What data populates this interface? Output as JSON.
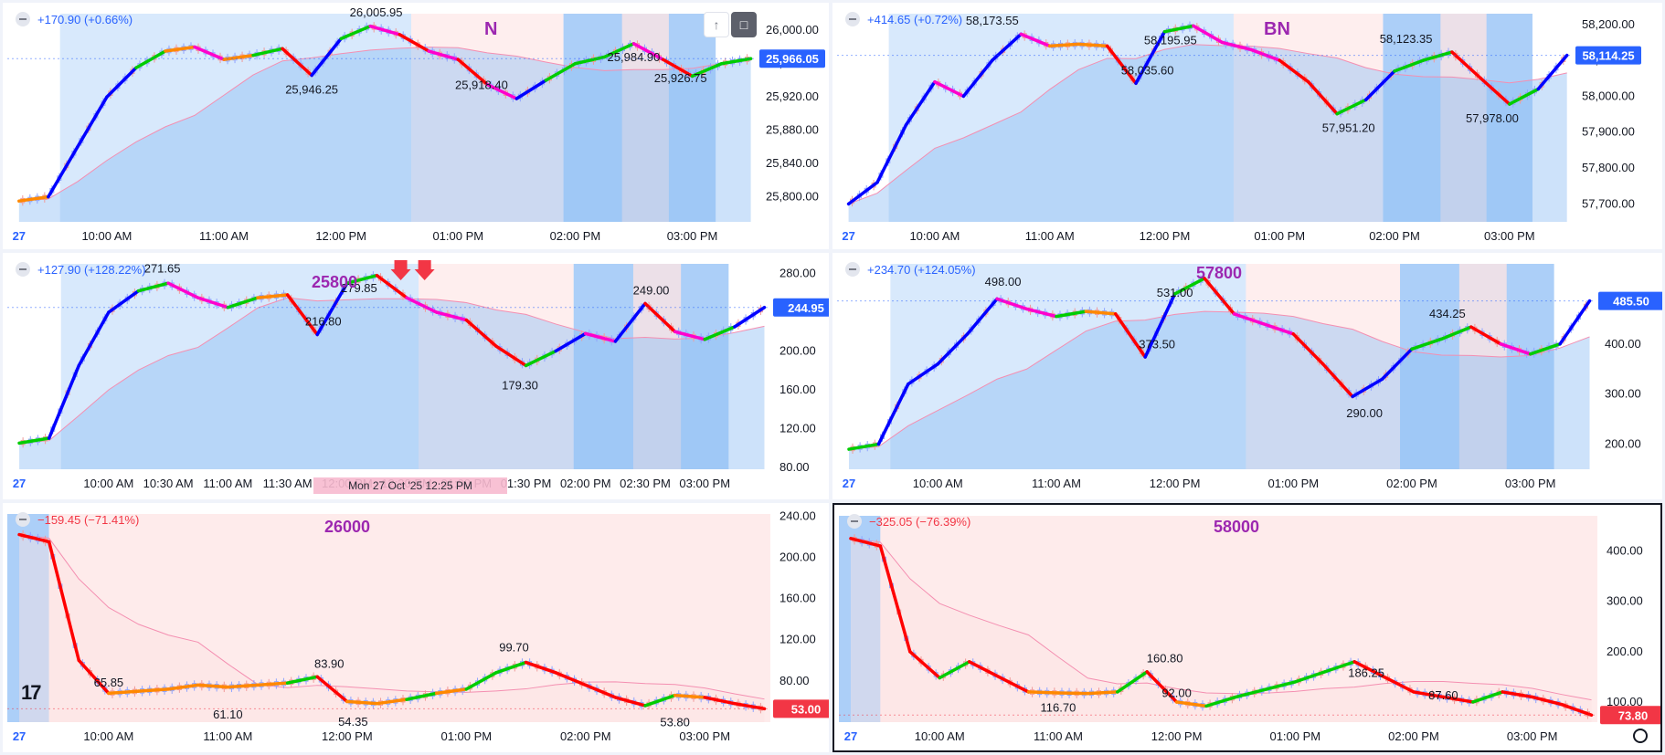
{
  "colors": {
    "up": "#0000ff",
    "down": "#ff0000",
    "rally": "#00cc00",
    "sideways": "#ff8800",
    "pullback": "#ff00cc",
    "blue_zone": "#90bff5",
    "pink_zone": "#fde3e3",
    "last_price_tag": "#2962ff",
    "last_price_tag_down": "#f23645",
    "gain_text": "#2962ff",
    "loss_text": "#f23645",
    "symbol_label": "#9c27b0"
  },
  "icons": [
    "collapse-icon",
    "arrow-up-icon",
    "fullscreen-icon",
    "tradingview-logo",
    "settings-icon",
    "sell-arrow-icon"
  ],
  "hover_tooltip": "Mon 27 Oct '25   12:25 PM",
  "charts": [
    {
      "change": "+170.90 (+0.66%)",
      "symbol": "N",
      "last_price": "25,966.05",
      "annotations": [
        {
          "text": "26,005.95",
          "t": 12.3,
          "v": 26005.95
        },
        {
          "text": "25,946.25",
          "t": 11.75,
          "v": 25946.25
        },
        {
          "text": "25,918.40",
          "t": 13.2,
          "v": 25918.4
        },
        {
          "text": "25,984.90",
          "t": 14.5,
          "v": 25984.9
        },
        {
          "text": "25,926.75",
          "t": 14.9,
          "v": 25926.75
        }
      ]
    },
    {
      "change": "+414.65 (+0.72%)",
      "symbol": "BN",
      "last_price": "58,114.25",
      "annotations": [
        {
          "text": "58,173.55",
          "t": 10.5,
          "v": 58173.55
        },
        {
          "text": "58,195.95",
          "t": 12.05,
          "v": 58195.95
        },
        {
          "text": "58,035.60",
          "t": 11.85,
          "v": 58035.6
        },
        {
          "text": "57,951.20",
          "t": 13.6,
          "v": 57951.2
        },
        {
          "text": "58,123.35",
          "t": 14.1,
          "v": 58123.35
        },
        {
          "text": "57,978.00",
          "t": 14.85,
          "v": 57978
        }
      ]
    },
    {
      "change": "+127.90 (+128.22%)",
      "symbol": "25800",
      "last_price": "244.95",
      "annotations": [
        {
          "text": "271.65",
          "t": 10.45,
          "v": 271.65
        },
        {
          "text": "279.85",
          "t": 12.1,
          "v": 279.85
        },
        {
          "text": "216.80",
          "t": 11.8,
          "v": 216.8
        },
        {
          "text": "179.30",
          "t": 13.45,
          "v": 179.3
        },
        {
          "text": "249.00",
          "t": 14.55,
          "v": 249
        }
      ]
    },
    {
      "change": "+234.70 (+124.05%)",
      "symbol": "57800",
      "last_price": "485.50",
      "annotations": [
        {
          "text": "498.00",
          "t": 10.55,
          "v": 498
        },
        {
          "text": "531.00",
          "t": 12.0,
          "v": 531
        },
        {
          "text": "373.50",
          "t": 11.85,
          "v": 373.5
        },
        {
          "text": "290.00",
          "t": 13.6,
          "v": 290
        },
        {
          "text": "434.25",
          "t": 14.3,
          "v": 434.25
        }
      ]
    },
    {
      "change": "−159.45 (−71.41%)",
      "symbol": "26000",
      "last_price": "53.00",
      "annotations": [
        {
          "text": "65.85",
          "t": 10.0,
          "v": 65.85
        },
        {
          "text": "61.10",
          "t": 11.0,
          "v": 61.1
        },
        {
          "text": "83.90",
          "t": 11.85,
          "v": 83.9
        },
        {
          "text": "54.35",
          "t": 12.05,
          "v": 54.35
        },
        {
          "text": "99.70",
          "t": 13.4,
          "v": 99.7
        },
        {
          "text": "53.80",
          "t": 14.75,
          "v": 53.8
        }
      ]
    },
    {
      "change": "−325.05 (−76.39%)",
      "symbol": "58000",
      "last_price": "73.80",
      "annotations": [
        {
          "text": "160.80",
          "t": 11.9,
          "v": 160.8
        },
        {
          "text": "116.70",
          "t": 11.0,
          "v": 116.7
        },
        {
          "text": "92.00",
          "t": 12.0,
          "v": 92
        },
        {
          "text": "186.25",
          "t": 13.6,
          "v": 186.25
        },
        {
          "text": "87.60",
          "t": 14.25,
          "v": 87.6
        }
      ]
    }
  ],
  "chart_data": [
    {
      "type": "line",
      "title": "N",
      "x_ticks": [
        "27",
        "10:00 AM",
        "11:00 AM",
        "12:00 PM",
        "01:00 PM",
        "02:00 PM",
        "03:00 PM"
      ],
      "y_ticks": [
        "26,000.00",
        "25,960.00",
        "25,920.00",
        "25,880.00",
        "25,840.00",
        "25,800.00"
      ],
      "ylim": [
        25770,
        26020
      ],
      "series": [
        {
          "x": [
            9.25,
            9.5,
            9.75,
            10.0,
            10.25,
            10.5,
            10.75,
            11.0,
            11.25,
            11.5,
            11.75,
            12.0,
            12.25,
            12.5,
            12.75,
            13.0,
            13.25,
            13.5,
            13.75,
            14.0,
            14.25,
            14.5,
            14.75,
            15.0,
            15.25,
            15.5
          ],
          "y": [
            25795,
            25800,
            25860,
            25920,
            25955,
            25975,
            25980,
            25965,
            25970,
            25978,
            25946,
            25990,
            26005,
            25995,
            25975,
            25965,
            25935,
            25918,
            25940,
            25960,
            25968,
            25984,
            25965,
            25945,
            25960,
            25966
          ]
        }
      ]
    },
    {
      "type": "line",
      "title": "BN",
      "x_ticks": [
        "27",
        "10:00 AM",
        "11:00 AM",
        "12:00 PM",
        "01:00 PM",
        "02:00 PM",
        "03:00 PM"
      ],
      "y_ticks": [
        "58,200.00",
        "58,100.00",
        "58,000.00",
        "57,900.00",
        "57,800.00",
        "57,700.00"
      ],
      "ylim": [
        57650,
        58230
      ],
      "series": [
        {
          "x": [
            9.25,
            9.5,
            9.75,
            10.0,
            10.25,
            10.5,
            10.75,
            11.0,
            11.25,
            11.5,
            11.75,
            12.0,
            12.25,
            12.5,
            12.75,
            13.0,
            13.25,
            13.5,
            13.75,
            14.0,
            14.25,
            14.5,
            14.75,
            15.0,
            15.25,
            15.5
          ],
          "y": [
            57700,
            57760,
            57920,
            58040,
            58000,
            58100,
            58173,
            58140,
            58145,
            58140,
            58036,
            58180,
            58196,
            58150,
            58130,
            58100,
            58040,
            57951,
            57990,
            58070,
            58100,
            58123,
            58050,
            57978,
            58020,
            58114
          ]
        }
      ]
    },
    {
      "type": "line",
      "title": "25800",
      "x_ticks": [
        "27",
        "10:00 AM",
        "10:30 AM",
        "11:00 AM",
        "11:30 AM",
        "12:00 PM",
        "12:30 PM",
        "01:00 PM",
        "01:30 PM",
        "02:00 PM",
        "02:30 PM",
        "03:00 PM"
      ],
      "y_ticks": [
        "280.00",
        "240.00",
        "200.00",
        "160.00",
        "120.00",
        "80.00"
      ],
      "ylim": [
        78,
        290
      ],
      "series": [
        {
          "x": [
            9.25,
            9.5,
            9.75,
            10.0,
            10.25,
            10.5,
            10.75,
            11.0,
            11.25,
            11.5,
            11.75,
            12.0,
            12.25,
            12.5,
            12.75,
            13.0,
            13.25,
            13.5,
            13.75,
            14.0,
            14.25,
            14.5,
            14.75,
            15.0,
            15.25,
            15.5
          ],
          "y": [
            105,
            110,
            185,
            240,
            262,
            270,
            255,
            245,
            255,
            258,
            217,
            270,
            278,
            255,
            240,
            232,
            205,
            185,
            200,
            218,
            210,
            249,
            220,
            212,
            225,
            245
          ]
        }
      ]
    },
    {
      "type": "line",
      "title": "57800",
      "x_ticks": [
        "27",
        "10:00 AM",
        "11:00 AM",
        "12:00 PM",
        "01:00 PM",
        "02:00 PM",
        "03:00 PM"
      ],
      "y_ticks": [
        "400.00",
        "300.00",
        "200.00"
      ],
      "ylim": [
        150,
        560
      ],
      "series": [
        {
          "x": [
            9.25,
            9.5,
            9.75,
            10.0,
            10.25,
            10.5,
            10.75,
            11.0,
            11.25,
            11.5,
            11.75,
            12.0,
            12.25,
            12.5,
            12.75,
            13.0,
            13.25,
            13.5,
            13.75,
            14.0,
            14.25,
            14.5,
            14.75,
            15.0,
            15.25,
            15.5
          ],
          "y": [
            190,
            200,
            320,
            360,
            420,
            490,
            470,
            455,
            465,
            460,
            374,
            500,
            531,
            460,
            440,
            420,
            360,
            295,
            330,
            390,
            410,
            434,
            400,
            380,
            400,
            486
          ]
        }
      ]
    },
    {
      "type": "line",
      "title": "26000",
      "x_ticks": [
        "27",
        "10:00 AM",
        "11:00 AM",
        "12:00 PM",
        "01:00 PM",
        "02:00 PM",
        "03:00 PM"
      ],
      "y_ticks": [
        "240.00",
        "200.00",
        "160.00",
        "120.00",
        "80.00"
      ],
      "ylim": [
        40,
        242
      ],
      "series": [
        {
          "x": [
            9.25,
            9.5,
            9.75,
            10.0,
            10.25,
            10.5,
            10.75,
            11.0,
            11.25,
            11.5,
            11.75,
            12.0,
            12.25,
            12.5,
            12.75,
            13.0,
            13.25,
            13.5,
            13.75,
            14.0,
            14.25,
            14.5,
            14.75,
            15.0,
            15.25,
            15.5
          ],
          "y": [
            222,
            215,
            100,
            68,
            70,
            72,
            76,
            74,
            76,
            78,
            84,
            60,
            58,
            62,
            68,
            72,
            88,
            98,
            88,
            76,
            64,
            56,
            66,
            64,
            58,
            53
          ]
        }
      ]
    },
    {
      "type": "line",
      "title": "58000",
      "x_ticks": [
        "27",
        "10:00 AM",
        "11:00 AM",
        "12:00 PM",
        "01:00 PM",
        "02:00 PM",
        "03:00 PM"
      ],
      "y_ticks": [
        "400.00",
        "300.00",
        "200.00",
        "100.00"
      ],
      "ylim": [
        60,
        470
      ],
      "series": [
        {
          "x": [
            9.25,
            9.5,
            9.75,
            10.0,
            10.25,
            10.5,
            10.75,
            11.0,
            11.25,
            11.5,
            11.75,
            12.0,
            12.25,
            12.5,
            12.75,
            13.0,
            13.25,
            13.5,
            13.75,
            14.0,
            14.25,
            14.5,
            14.75,
            15.0,
            15.25,
            15.5
          ],
          "y": [
            425,
            410,
            200,
            148,
            180,
            150,
            120,
            118,
            117,
            120,
            160,
            100,
            92,
            110,
            125,
            140,
            160,
            180,
            150,
            120,
            110,
            100,
            120,
            110,
            95,
            74
          ]
        }
      ]
    }
  ]
}
